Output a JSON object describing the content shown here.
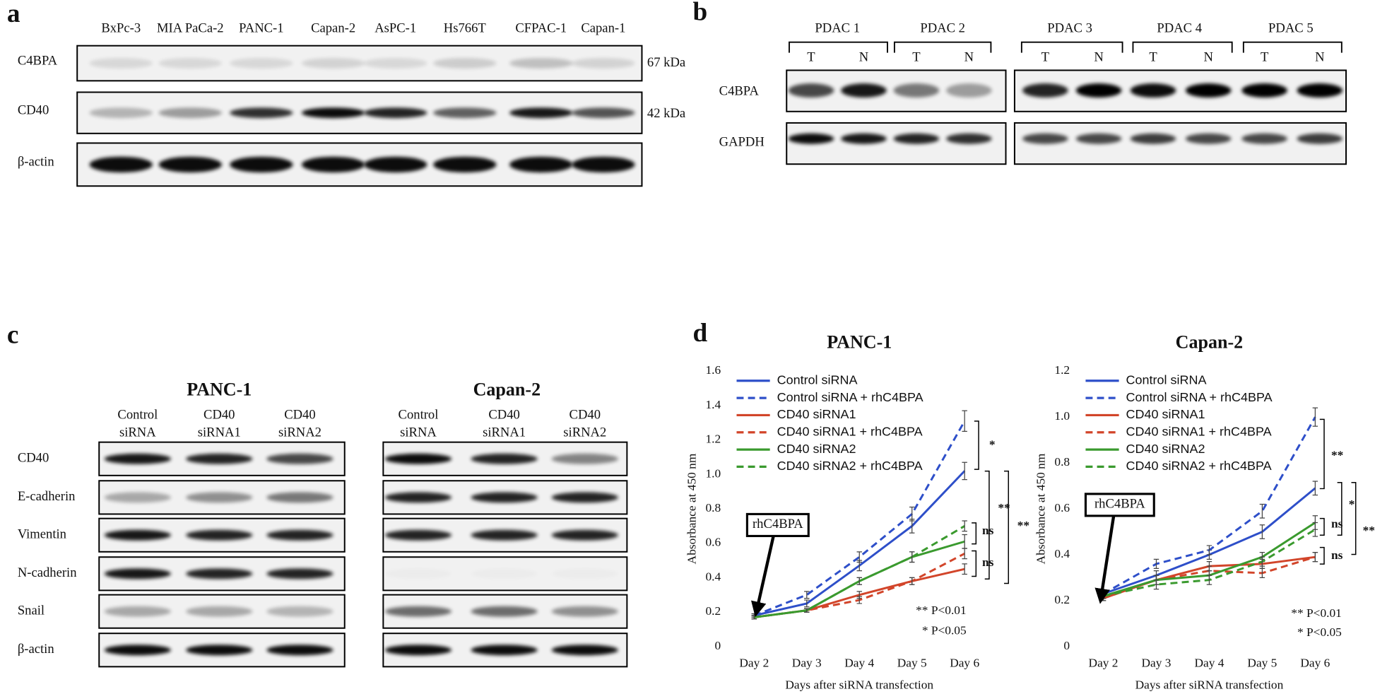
{
  "panels": {
    "a": {
      "label": "a",
      "lanes": [
        "BxPc-3",
        "MIA PaCa-2",
        "PANC-1",
        "Capan-2",
        "AsPC-1",
        "Hs766T",
        "CFPAC-1",
        "Capan-1"
      ],
      "rows": [
        "C4BPA",
        "CD40",
        "β-actin"
      ],
      "sizes": [
        "67 kDa",
        "42 kDa"
      ]
    },
    "b": {
      "label": "b",
      "groups": [
        "PDAC 1",
        "PDAC 2",
        "PDAC 3",
        "PDAC 4",
        "PDAC 5"
      ],
      "lanes": [
        "T",
        "N"
      ],
      "rows": [
        "C4BPA",
        "GAPDH"
      ]
    },
    "c": {
      "label": "c",
      "titles": [
        "PANC-1",
        "Capan-2"
      ],
      "lanes": [
        [
          "Control",
          "siRNA"
        ],
        [
          "CD40",
          "siRNA1"
        ],
        [
          "CD40",
          "siRNA2"
        ]
      ],
      "rows": [
        "CD40",
        "E-cadherin",
        "Vimentin",
        "N-cadherin",
        "Snail",
        "β-actin"
      ]
    },
    "d": {
      "label": "d"
    }
  },
  "chart_data": [
    {
      "type": "line",
      "title": "PANC-1",
      "ylabel": "Absorbance at 450 nm",
      "xlabel": "Days after siRNA transfection",
      "categories": [
        "Day 2",
        "Day 3",
        "Day 4",
        "Day 5",
        "Day 6"
      ],
      "ylim": [
        0,
        1.6
      ],
      "yticks": [
        0,
        0.2,
        0.4,
        0.6,
        0.8,
        {
          "value": 1,
          "label": "1.0"
        },
        1.2,
        1.4,
        1.6
      ],
      "grid": false,
      "legend": "upper left",
      "series": [
        {
          "name": "Control siRNA",
          "color": "#2e4fc9",
          "linestyle": "solid",
          "values": [
            0.18,
            0.25,
            0.47,
            0.7,
            1.02
          ],
          "errors": [
            0.01,
            0.02,
            0.03,
            0.04,
            0.05
          ]
        },
        {
          "name": "Control siRNA + rhC4BPA",
          "color": "#2e4fc9",
          "linestyle": "dashed",
          "values": [
            0.18,
            0.3,
            0.52,
            0.77,
            1.31
          ],
          "errors": [
            0.01,
            0.02,
            0.03,
            0.04,
            0.06
          ]
        },
        {
          "name": "CD40 siRNA1",
          "color": "#d2452a",
          "linestyle": "solid",
          "values": [
            0.17,
            0.21,
            0.3,
            0.38,
            0.45
          ],
          "errors": [
            0.01,
            0.01,
            0.02,
            0.02,
            0.03
          ]
        },
        {
          "name": "CD40 siRNA1 + rhC4BPA",
          "color": "#d2452a",
          "linestyle": "dashed",
          "values": [
            0.17,
            0.21,
            0.27,
            0.38,
            0.54
          ],
          "errors": [
            0.01,
            0.01,
            0.02,
            0.02,
            0.03
          ]
        },
        {
          "name": "CD40 siRNA2",
          "color": "#3a9a2e",
          "linestyle": "solid",
          "values": [
            0.17,
            0.21,
            0.38,
            0.52,
            0.61
          ],
          "errors": [
            0.01,
            0.01,
            0.02,
            0.03,
            0.04
          ]
        },
        {
          "name": "CD40 siRNA2 + rhC4BPA",
          "color": "#3a9a2e",
          "linestyle": "dashed",
          "values": [
            0.17,
            0.21,
            0.38,
            0.52,
            0.7
          ],
          "errors": [
            0.01,
            0.01,
            0.02,
            0.03,
            0.03
          ]
        }
      ],
      "annotations": [
        {
          "text": "rhC4BPA"
        },
        {
          "text": "*"
        },
        {
          "text": "**"
        },
        {
          "text": "**"
        },
        {
          "text": "ns"
        },
        {
          "text": "ns"
        },
        {
          "text": "** P<0.01"
        },
        {
          "text": "* P<0.05"
        }
      ]
    },
    {
      "type": "line",
      "title": "Capan-2",
      "ylabel": "Absorbance at 450 nm",
      "xlabel": "Days after siRNA transfection",
      "categories": [
        "Day 2",
        "Day 3",
        "Day 4",
        "Day 5",
        "Day 6"
      ],
      "ylim": [
        0,
        1.2
      ],
      "yticks": [
        0,
        0.2,
        0.4,
        0.6,
        0.8,
        {
          "value": 1,
          "label": "1.0"
        },
        1.2
      ],
      "grid": false,
      "legend": "upper left",
      "series": [
        {
          "name": "Control siRNA",
          "color": "#2e4fc9",
          "linestyle": "solid",
          "values": [
            0.23,
            0.31,
            0.4,
            0.5,
            0.69
          ],
          "errors": [
            0.01,
            0.02,
            0.02,
            0.03,
            0.03
          ]
        },
        {
          "name": "Control siRNA + rhC4BPA",
          "color": "#2e4fc9",
          "linestyle": "dashed",
          "values": [
            0.23,
            0.36,
            0.42,
            0.59,
            1.0
          ],
          "errors": [
            0.01,
            0.02,
            0.02,
            0.03,
            0.04
          ]
        },
        {
          "name": "CD40 siRNA1",
          "color": "#d2452a",
          "linestyle": "solid",
          "values": [
            0.21,
            0.29,
            0.35,
            0.36,
            0.39
          ],
          "errors": [
            0.01,
            0.02,
            0.02,
            0.02,
            0.02
          ]
        },
        {
          "name": "CD40 siRNA1 + rhC4BPA",
          "color": "#d2452a",
          "linestyle": "dashed",
          "values": [
            0.21,
            0.29,
            0.33,
            0.32,
            0.39
          ],
          "errors": [
            0.01,
            0.02,
            0.02,
            0.02,
            0.02
          ]
        },
        {
          "name": "CD40 siRNA2",
          "color": "#3a9a2e",
          "linestyle": "solid",
          "values": [
            0.22,
            0.29,
            0.31,
            0.39,
            0.54
          ],
          "errors": [
            0.01,
            0.02,
            0.02,
            0.02,
            0.03
          ]
        },
        {
          "name": "CD40 siRNA2 + rhC4BPA",
          "color": "#3a9a2e",
          "linestyle": "dashed",
          "values": [
            0.22,
            0.27,
            0.29,
            0.37,
            0.51
          ],
          "errors": [
            0.01,
            0.02,
            0.02,
            0.02,
            0.03
          ]
        }
      ],
      "annotations": [
        {
          "text": "rhC4BPA"
        },
        {
          "text": "**"
        },
        {
          "text": "*"
        },
        {
          "text": "ns"
        },
        {
          "text": "**"
        },
        {
          "text": "ns"
        },
        {
          "text": "** P<0.01"
        },
        {
          "text": "* P<0.05"
        }
      ]
    }
  ]
}
